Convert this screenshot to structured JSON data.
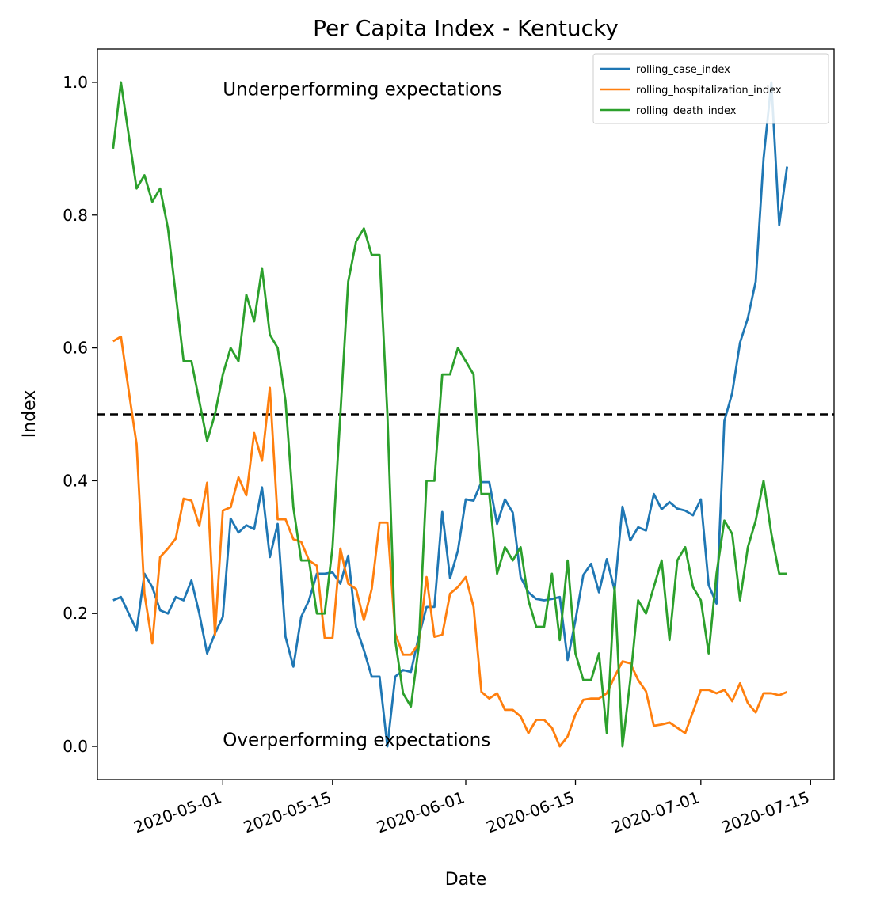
{
  "chart_data": {
    "type": "line",
    "title": "Per Capita Index - Kentucky",
    "xlabel": "Date",
    "ylabel": "Index",
    "x_start": "2020-04-17",
    "x_end": "2020-07-14",
    "xlim": [
      "2020-04-15",
      "2020-07-18"
    ],
    "ylim": [
      -0.05,
      1.05
    ],
    "xticks": [
      "2020-05-01",
      "2020-05-15",
      "2020-06-01",
      "2020-06-15",
      "2020-07-01",
      "2020-07-15"
    ],
    "yticks": [
      0.0,
      0.2,
      0.4,
      0.6,
      0.8,
      1.0
    ],
    "ytick_labels": [
      "0.0",
      "0.2",
      "0.4",
      "0.6",
      "0.8",
      "1.0"
    ],
    "reference_line": {
      "y": 0.5,
      "style": "dashed",
      "color": "#000000"
    },
    "annotations": [
      {
        "text": "Underperforming expectations",
        "x": "2020-05-01",
        "y": 0.99
      },
      {
        "text": "Overperforming expectations",
        "x": "2020-05-01",
        "y": 0.01
      }
    ],
    "legend": {
      "placement": "top-right"
    },
    "grid": false,
    "series": [
      {
        "name": "rolling_case_index",
        "color": "#1f77b4",
        "values": [
          0.22,
          0.225,
          0.2,
          0.175,
          0.26,
          0.24,
          0.205,
          0.2,
          0.225,
          0.22,
          0.25,
          0.2,
          0.14,
          0.17,
          0.195,
          0.343,
          0.322,
          0.333,
          0.327,
          0.39,
          0.285,
          0.335,
          0.165,
          0.12,
          0.195,
          0.22,
          0.26,
          0.26,
          0.262,
          0.245,
          0.287,
          0.18,
          0.145,
          0.105,
          0.105,
          0.0,
          0.105,
          0.115,
          0.112,
          0.165,
          0.21,
          0.21,
          0.353,
          0.253,
          0.295,
          0.372,
          0.37,
          0.398,
          0.398,
          0.335,
          0.372,
          0.352,
          0.255,
          0.232,
          0.222,
          0.22,
          0.222,
          0.225,
          0.13,
          0.19,
          0.258,
          0.275,
          0.232,
          0.282,
          0.235,
          0.361,
          0.31,
          0.33,
          0.325,
          0.38,
          0.357,
          0.368,
          0.358,
          0.355,
          0.348,
          0.372,
          0.243,
          0.215,
          0.49,
          0.532,
          0.608,
          0.645,
          0.7,
          0.885,
          1.0,
          0.785,
          0.873
        ]
      },
      {
        "name": "rolling_hospitalization_index",
        "color": "#ff7f0e",
        "values": [
          0.61,
          0.617,
          0.535,
          0.455,
          0.23,
          0.155,
          0.285,
          0.298,
          0.313,
          0.373,
          0.37,
          0.332,
          0.397,
          0.168,
          0.355,
          0.36,
          0.405,
          0.378,
          0.472,
          0.43,
          0.54,
          0.342,
          0.342,
          0.312,
          0.308,
          0.28,
          0.272,
          0.163,
          0.163,
          0.298,
          0.245,
          0.237,
          0.19,
          0.237,
          0.337,
          0.337,
          0.17,
          0.138,
          0.138,
          0.155,
          0.255,
          0.165,
          0.168,
          0.23,
          0.24,
          0.255,
          0.21,
          0.082,
          0.072,
          0.08,
          0.055,
          0.055,
          0.045,
          0.02,
          0.04,
          0.04,
          0.028,
          0.0,
          0.015,
          0.048,
          0.07,
          0.072,
          0.072,
          0.08,
          0.105,
          0.128,
          0.125,
          0.1,
          0.083,
          0.031,
          0.033,
          0.036,
          0.028,
          0.02,
          0.052,
          0.085,
          0.085,
          0.08,
          0.085,
          0.068,
          0.095,
          0.065,
          0.051,
          0.08,
          0.08,
          0.077,
          0.082
        ]
      },
      {
        "name": "rolling_death_index",
        "color": "#2ca02c",
        "values": [
          0.9,
          1.0,
          0.92,
          0.84,
          0.86,
          0.82,
          0.84,
          0.78,
          0.68,
          0.58,
          0.58,
          0.52,
          0.46,
          0.5,
          0.56,
          0.6,
          0.58,
          0.68,
          0.64,
          0.72,
          0.62,
          0.6,
          0.52,
          0.36,
          0.28,
          0.28,
          0.2,
          0.2,
          0.3,
          0.5,
          0.7,
          0.76,
          0.78,
          0.74,
          0.74,
          0.5,
          0.16,
          0.08,
          0.06,
          0.15,
          0.4,
          0.4,
          0.56,
          0.56,
          0.6,
          0.58,
          0.56,
          0.38,
          0.38,
          0.26,
          0.3,
          0.28,
          0.3,
          0.22,
          0.18,
          0.18,
          0.26,
          0.16,
          0.28,
          0.14,
          0.1,
          0.1,
          0.14,
          0.02,
          0.24,
          0.0,
          0.1,
          0.22,
          0.2,
          0.24,
          0.28,
          0.16,
          0.28,
          0.3,
          0.24,
          0.22,
          0.14,
          0.26,
          0.34,
          0.32,
          0.22,
          0.3,
          0.34,
          0.4,
          0.32,
          0.26,
          0.26
        ]
      }
    ]
  }
}
